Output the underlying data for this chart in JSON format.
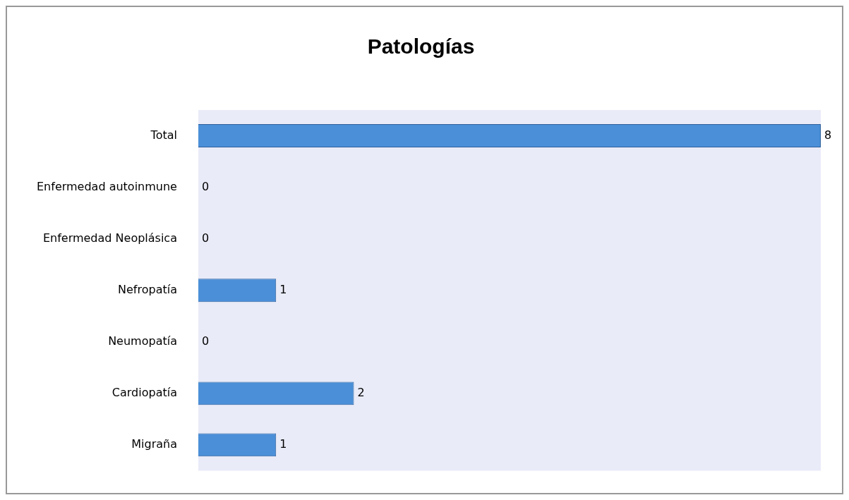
{
  "chart_data": {
    "type": "bar",
    "title": "Patologías",
    "orientation": "horizontal",
    "categories": [
      "Total",
      "Enfermedad autoinmune",
      "Enfermedad Neoplásica",
      "Nefropatía",
      "Neumopatía",
      "Cardiopatía",
      "Migraña"
    ],
    "values": [
      8,
      0,
      0,
      1,
      0,
      2,
      1
    ],
    "color": "#4a8fd8",
    "data_labels": true,
    "legend": false
  }
}
